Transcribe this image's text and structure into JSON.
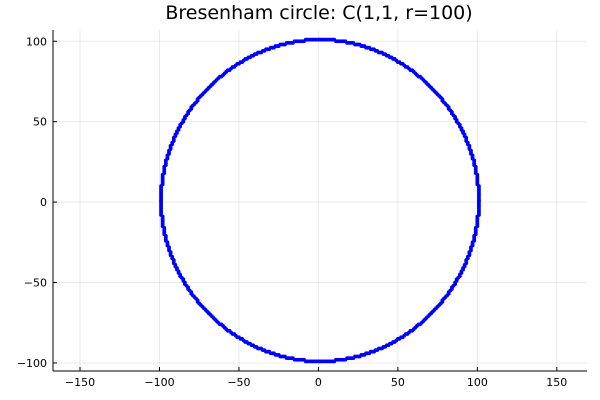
{
  "chart_data": {
    "type": "scatter",
    "title": "Bresenham circle: C(1,1, r=100)",
    "xlabel": "",
    "ylabel": "",
    "circle": {
      "center": [
        1,
        1
      ],
      "radius": 100
    },
    "xlim": [
      -167,
      169
    ],
    "ylim": [
      -105,
      107
    ],
    "xticks": [
      -150,
      -100,
      -50,
      0,
      50,
      100,
      150
    ],
    "yticks": [
      -100,
      -50,
      0,
      50,
      100
    ],
    "grid": true,
    "legend": "none",
    "series": [
      {
        "color": "#0000ff"
      }
    ]
  }
}
